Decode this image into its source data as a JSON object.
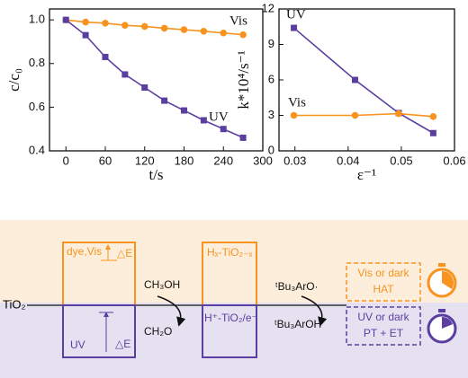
{
  "chart_data": [
    {
      "type": "line",
      "x_label": "t/s",
      "y_label": "c/c₀",
      "x": [
        0,
        30,
        60,
        90,
        120,
        150,
        180,
        210,
        240,
        270
      ],
      "series": [
        {
          "name": "Vis",
          "color": "#f7931e",
          "marker": "circle",
          "values": [
            1.0,
            0.99,
            0.985,
            0.975,
            0.97,
            0.962,
            0.955,
            0.948,
            0.94,
            0.932
          ]
        },
        {
          "name": "UV",
          "color": "#5b3fa0",
          "marker": "square",
          "values": [
            1.0,
            0.93,
            0.83,
            0.75,
            0.69,
            0.63,
            0.585,
            0.54,
            0.5,
            0.46
          ]
        }
      ],
      "xlim": [
        -25,
        300
      ],
      "xticks": [
        0,
        60,
        120,
        180,
        240,
        300
      ],
      "ylim": [
        0.4,
        1.05
      ],
      "yticks": [
        0.4,
        0.6,
        0.8,
        {
          "value": 1,
          "label": "1.0"
        }
      ]
    },
    {
      "type": "line",
      "x_label": "ε⁻¹",
      "y_label": "k*10⁴/s⁻¹",
      "x": [
        0.0298,
        0.0413,
        0.0495,
        0.056
      ],
      "series": [
        {
          "name": "UV",
          "color": "#5b3fa0",
          "marker": "square",
          "values": [
            10.4,
            6.0,
            3.2,
            1.5
          ]
        },
        {
          "name": "Vis",
          "color": "#f7931e",
          "marker": "circle",
          "values": [
            3.0,
            3.0,
            3.15,
            2.9
          ]
        }
      ],
      "xlim": [
        0.027,
        0.06
      ],
      "xticks": [
        0.03,
        0.04,
        0.05,
        0.06
      ],
      "ylim": [
        0,
        12
      ],
      "yticks": [
        0,
        3,
        6,
        9,
        12
      ]
    }
  ],
  "diagram": {
    "substrate": "TiO₂",
    "box1": {
      "top": "dye,Vis",
      "top_delta": "△E",
      "bottom": "UV",
      "bottom_delta": "△E"
    },
    "step1": {
      "reactant": "CH₃OH",
      "product": "CH₂O"
    },
    "box2": {
      "top": "Hₓ-TiO₂₋ₓ",
      "bottom": "H⁺-TiO₂/e⁻"
    },
    "step2": {
      "reactant": "ᵗBu₃ArO·",
      "product": "ᵗBu₃ArOH"
    },
    "vis_box": {
      "line1": "Vis or dark",
      "line2": "HAT"
    },
    "uv_box": {
      "line1": "UV or dark",
      "line2": "PT + ET"
    }
  }
}
